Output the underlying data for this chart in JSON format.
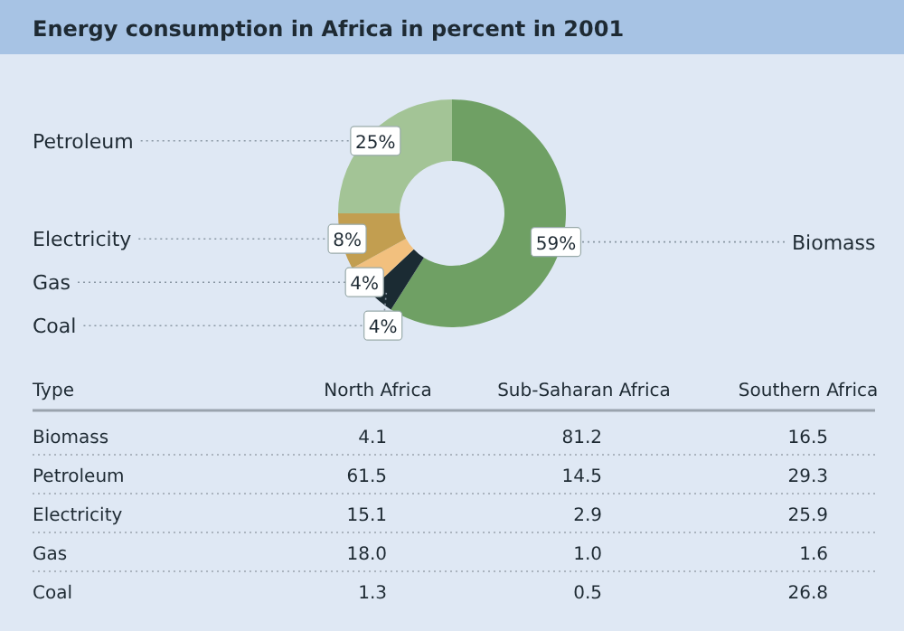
{
  "chart_data": [
    {
      "type": "donut",
      "title": "Energy consumption in Africa in percent in 2001",
      "categories": [
        "Biomass",
        "Coal",
        "Gas",
        "Electricity",
        "Petroleum"
      ],
      "values": [
        59,
        4,
        4,
        8,
        25
      ],
      "colors": [
        "#6fa064",
        "#1b2b33",
        "#f2c07e",
        "#c29e50",
        "#a3c496"
      ],
      "value_labels": [
        "59%",
        "4%",
        "4%",
        "8%",
        "25%"
      ]
    },
    {
      "type": "heatmap",
      "ylabel": "Type",
      "categories": [
        "North Africa",
        "Sub-Saharan Africa",
        "Southern Africa"
      ],
      "y_categories": [
        "Biomass",
        "Petroleum",
        "Electricity",
        "Gas",
        "Coal"
      ],
      "cells": [
        [
          4.1,
          81.2,
          16.5
        ],
        [
          61.5,
          14.5,
          29.3
        ],
        [
          15.1,
          2.9,
          25.9
        ],
        [
          18.0,
          1.0,
          1.6
        ],
        [
          1.3,
          0.5,
          26.8
        ]
      ],
      "cell_labels": [
        [
          "4.1",
          "81.2",
          "16.5"
        ],
        [
          "61.5",
          "14.5",
          "29.3"
        ],
        [
          "15.1",
          "2.9",
          "25.9"
        ],
        [
          "18.0",
          "1.0",
          "1.6"
        ],
        [
          "1.3",
          "0.5",
          "26.8"
        ]
      ]
    }
  ]
}
